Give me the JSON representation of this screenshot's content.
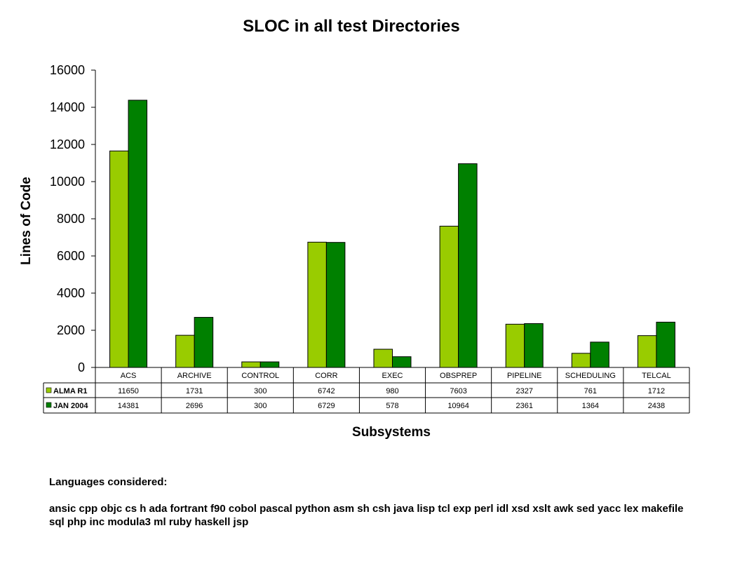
{
  "chart_data": {
    "type": "bar",
    "title": "SLOC in all test Directories",
    "xlabel": "Subsystems",
    "ylabel": "Lines of Code",
    "ylim": [
      0,
      16000
    ],
    "yticks": [
      0,
      2000,
      4000,
      6000,
      8000,
      10000,
      12000,
      14000,
      16000
    ],
    "categories": [
      "ACS",
      "ARCHIVE",
      "CONTROL",
      "CORR",
      "EXEC",
      "OBSPREP",
      "PIPELINE",
      "SCHEDULING",
      "TELCAL"
    ],
    "series": [
      {
        "name": "ALMA R1",
        "color": "#99cc00",
        "values": [
          11650,
          1731,
          300,
          6742,
          980,
          7603,
          2327,
          761,
          1712
        ]
      },
      {
        "name": "JAN 2004",
        "color": "#008000",
        "values": [
          14381,
          2696,
          300,
          6729,
          578,
          10964,
          2361,
          1364,
          2438
        ]
      }
    ],
    "grid": false,
    "legend": "data-table"
  },
  "notes": {
    "heading": "Languages considered:",
    "languages": "ansic cpp objc cs h ada fortrant f90 cobol pascal python asm sh csh java lisp tcl exp perl idl xsd xslt awk sed yacc lex makefile sql php inc modula3 ml ruby haskell jsp"
  }
}
